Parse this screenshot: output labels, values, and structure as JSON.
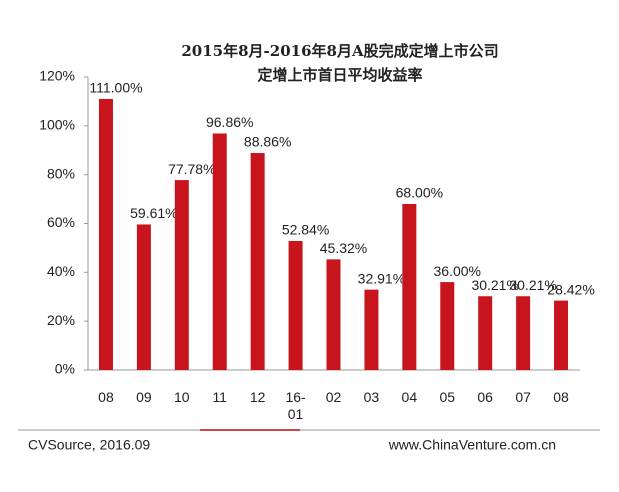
{
  "chart_data": {
    "type": "bar",
    "title": "2015年8月-2016年8月A股完成定增上市公司",
    "subtitle": "定增上市首日平均收益率",
    "categories": [
      "08",
      "09",
      "10",
      "11",
      "12",
      "16-01",
      "02",
      "03",
      "04",
      "05",
      "06",
      "07",
      "08"
    ],
    "values": [
      111.0,
      59.61,
      77.78,
      96.86,
      88.86,
      52.84,
      45.32,
      32.91,
      68.0,
      36.0,
      30.21,
      30.21,
      28.42
    ],
    "value_labels": [
      "111.00%",
      "59.61%",
      "77.78%",
      "96.86%",
      "88.86%",
      "52.84%",
      "45.32%",
      "32.91%",
      "68.00%",
      "36.00%",
      "30.21%",
      "30.21%",
      "28.42%"
    ],
    "color": "#c8151d",
    "ylim": [
      0,
      120
    ],
    "yticks": [
      {
        "value": 0,
        "label": "0%"
      },
      {
        "value": 20,
        "label": "20%"
      },
      {
        "value": 40,
        "label": "40%"
      },
      {
        "value": 60,
        "label": "60%"
      },
      {
        "value": 80,
        "label": "80%"
      },
      {
        "value": 100,
        "label": "100%"
      },
      {
        "value": 120,
        "label": "120%"
      }
    ],
    "source": "CVSource, 2016.09",
    "website": "www.ChinaVenture.com.cn"
  }
}
